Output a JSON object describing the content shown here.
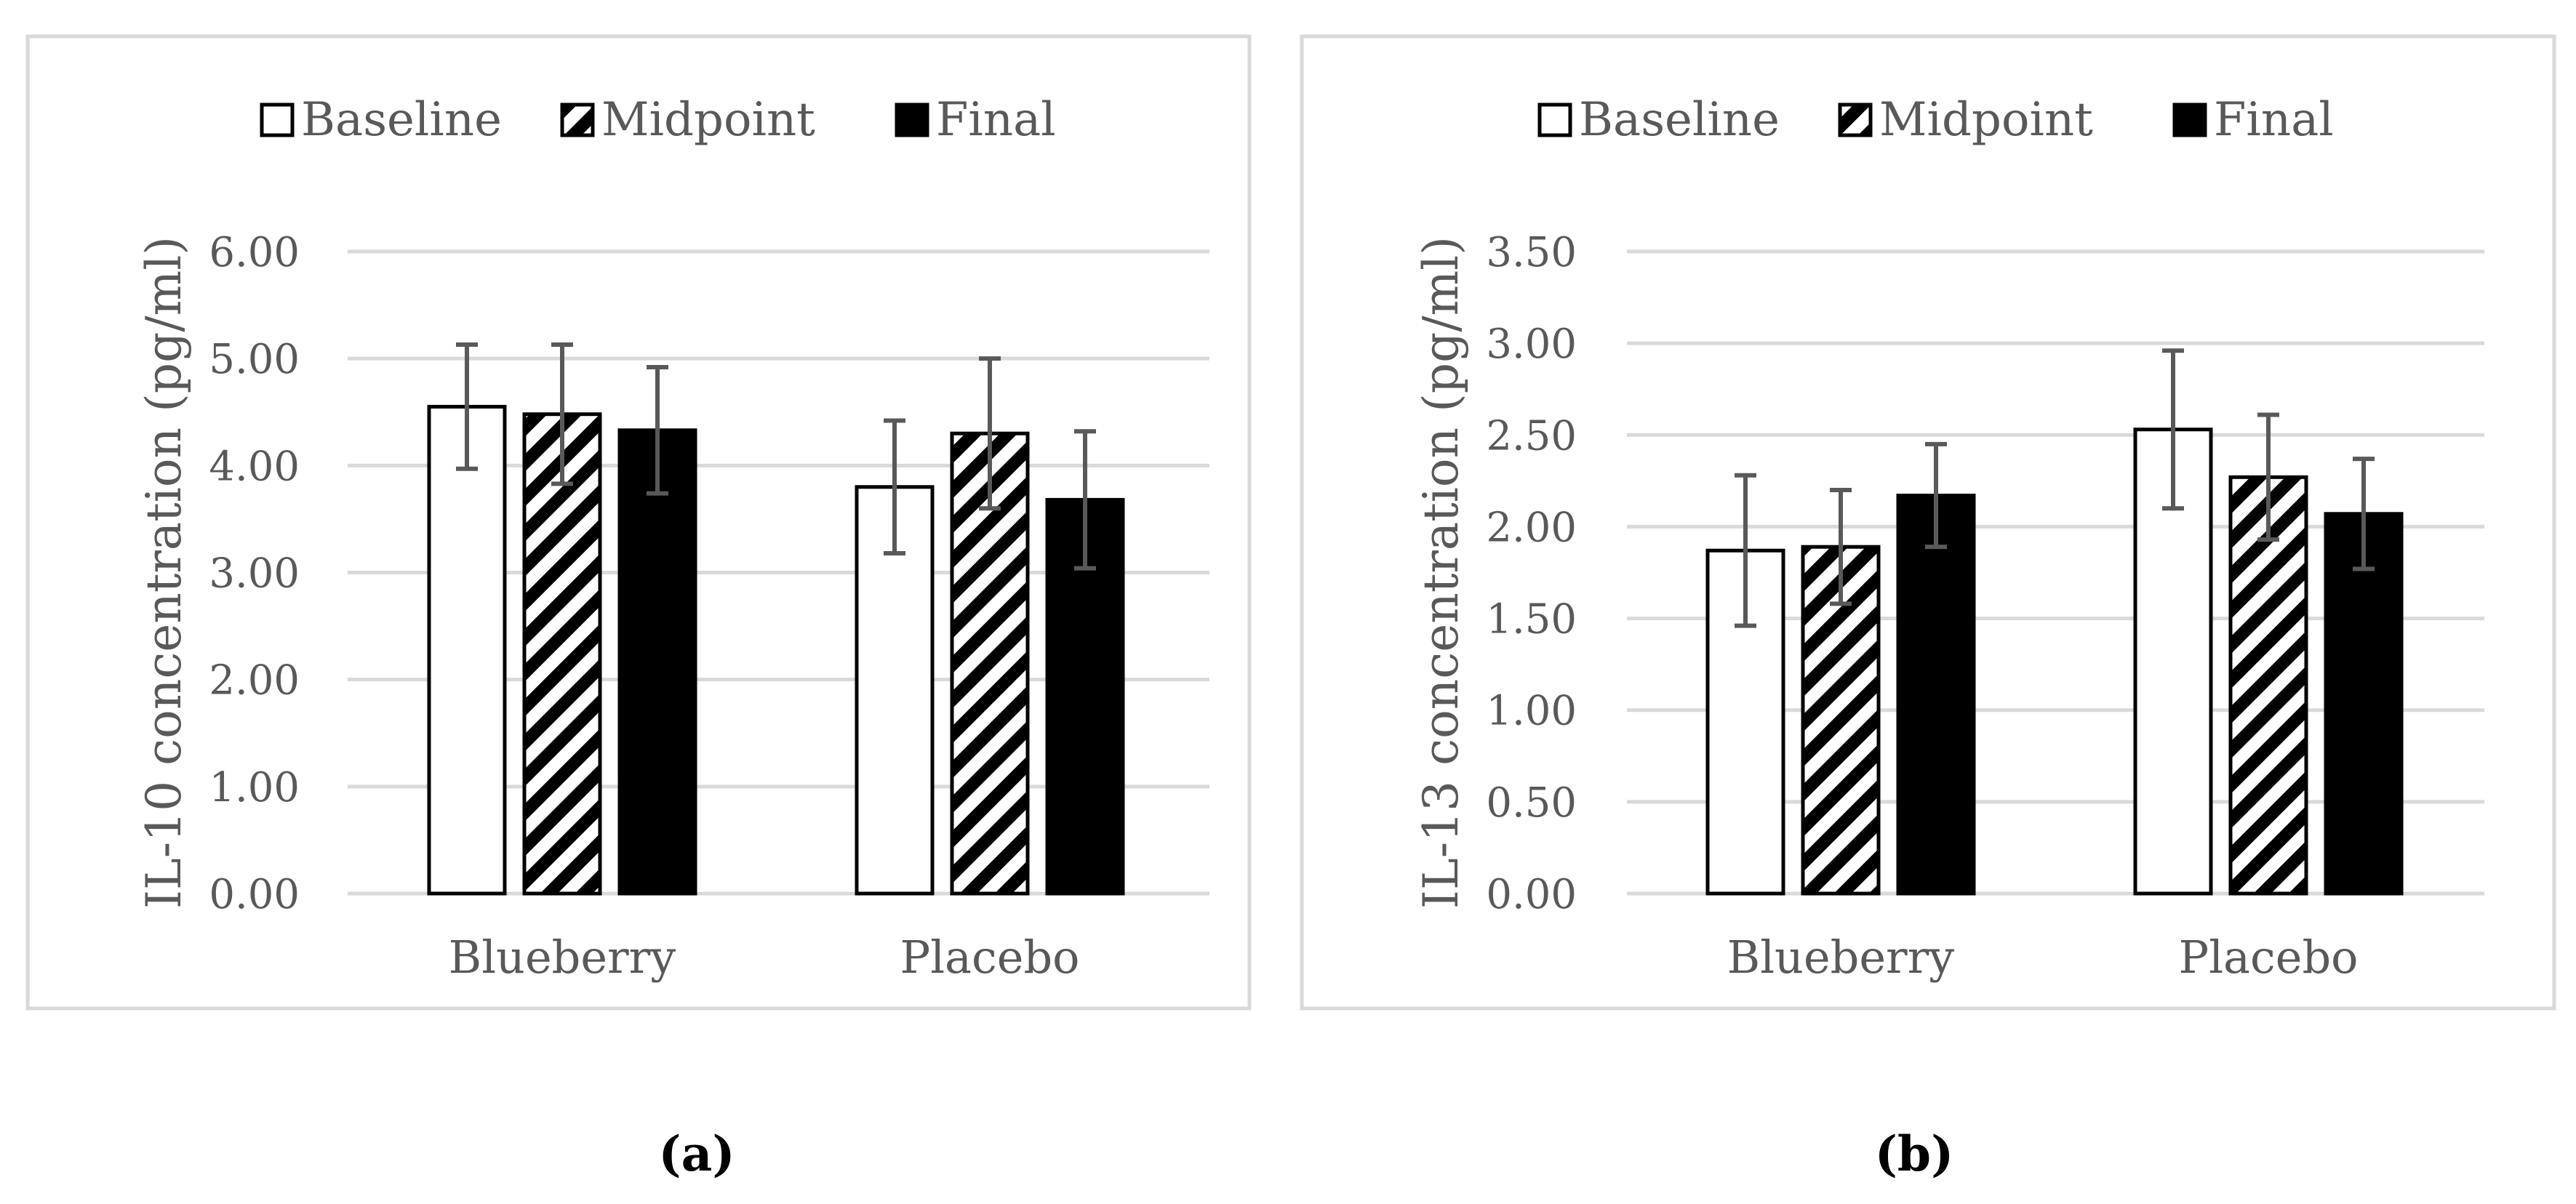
{
  "legend": [
    "Baseline",
    "Midpoint",
    "Final"
  ],
  "chart_data": [
    {
      "type": "bar",
      "categories": [
        "Blueberry",
        "Placebo"
      ],
      "ylabel": "IL-10 concentration (pg/ml)",
      "ylim": [
        0,
        6
      ],
      "yticks": [
        "0.00",
        "1.00",
        "2.00",
        "3.00",
        "4.00",
        "5.00",
        "6.00"
      ],
      "grid": true,
      "legend_position": "top",
      "caption": "(a)",
      "series": [
        {
          "name": "Baseline",
          "values": [
            4.55,
            3.8
          ],
          "err": [
            0.58,
            0.62
          ]
        },
        {
          "name": "Midpoint",
          "values": [
            4.48,
            4.3
          ],
          "err": [
            0.65,
            0.7
          ]
        },
        {
          "name": "Final",
          "values": [
            4.33,
            3.68
          ],
          "err": [
            0.59,
            0.64
          ]
        }
      ]
    },
    {
      "type": "bar",
      "categories": [
        "Blueberry",
        "Placebo"
      ],
      "ylabel": "IL-13 concentration (pg/ml)",
      "ylim": [
        0,
        3.5
      ],
      "yticks": [
        "0.00",
        "0.50",
        "1.00",
        "1.50",
        "2.00",
        "2.50",
        "3.00",
        "3.50"
      ],
      "grid": true,
      "legend_position": "top",
      "caption": "(b)",
      "series": [
        {
          "name": "Baseline",
          "values": [
            1.87,
            2.53
          ],
          "err": [
            0.41,
            0.43
          ]
        },
        {
          "name": "Midpoint",
          "values": [
            1.89,
            2.27
          ],
          "err": [
            0.31,
            0.34
          ]
        },
        {
          "name": "Final",
          "values": [
            2.17,
            2.07
          ],
          "err": [
            0.28,
            0.3
          ]
        }
      ]
    }
  ],
  "colors": {
    "grid": "#d9d9d9",
    "frame": "#d9d9d9",
    "text": "#595959",
    "error": "#595959",
    "bar": "#000000"
  }
}
